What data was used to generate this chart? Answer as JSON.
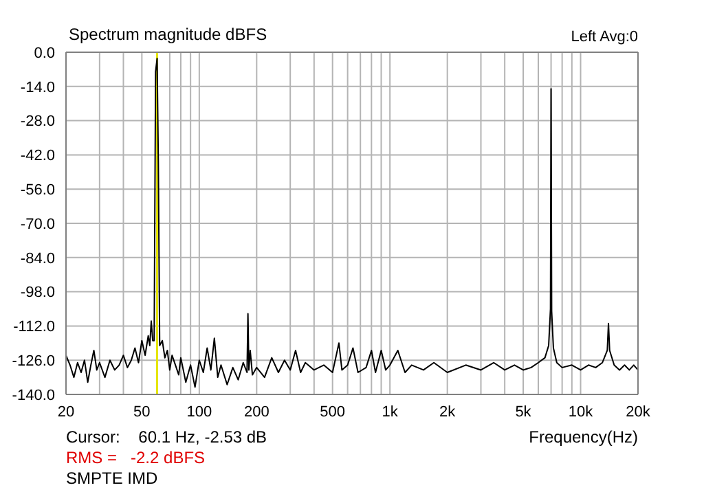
{
  "chart_data": {
    "type": "line",
    "title": "Spectrum magnitude dBFS",
    "xlabel": "Frequency(Hz)",
    "annotations": [
      "Left  Avg:0",
      "Cursor:    60.1 Hz, -2.53 dB",
      "RMS =   -2.2 dBFS",
      "SMPTE IMD"
    ],
    "log": "x",
    "grid": true,
    "xlim": [
      20,
      20000
    ],
    "ylim": [
      -140,
      0
    ],
    "xticks": [
      20,
      {
        "value": 30,
        "label": null
      },
      {
        "value": 40,
        "label": null
      },
      50,
      {
        "value": 60,
        "label": null
      },
      {
        "value": 70,
        "label": null
      },
      {
        "value": 80,
        "label": null
      },
      {
        "value": 90,
        "label": null
      },
      100,
      200,
      {
        "value": 300,
        "label": null
      },
      {
        "value": 400,
        "label": null
      },
      500,
      {
        "value": 600,
        "label": null
      },
      {
        "value": 700,
        "label": null
      },
      {
        "value": 800,
        "label": null
      },
      {
        "value": 900,
        "label": null
      },
      {
        "value": 1000,
        "label": "1k"
      },
      {
        "value": 2000,
        "label": "2k"
      },
      {
        "value": 3000,
        "label": null
      },
      {
        "value": 4000,
        "label": null
      },
      {
        "value": 5000,
        "label": "5k"
      },
      {
        "value": 6000,
        "label": null
      },
      {
        "value": 7000,
        "label": null
      },
      {
        "value": 8000,
        "label": null
      },
      {
        "value": 9000,
        "label": null
      },
      {
        "value": 10000,
        "label": "10k"
      },
      {
        "value": 20000,
        "label": "20k"
      }
    ],
    "yticks": [
      {
        "value": 0,
        "label": "0.0"
      },
      {
        "value": -14,
        "label": "-14.0"
      },
      {
        "value": -28,
        "label": "-28.0"
      },
      {
        "value": -42,
        "label": "-42.0"
      },
      {
        "value": -56,
        "label": "-56.0"
      },
      {
        "value": -70,
        "label": "-70.0"
      },
      {
        "value": -84,
        "label": "-84.0"
      },
      {
        "value": -98,
        "label": "-98.0"
      },
      {
        "value": -112,
        "label": "-112.0"
      },
      {
        "value": -126,
        "label": "-126.0"
      },
      {
        "value": -140,
        "label": "-140.0"
      }
    ],
    "ref_lines": [
      {
        "axis": "x",
        "value": 60.1,
        "color": "#e6e600"
      }
    ],
    "series": [
      {
        "color": "#000000",
        "x": [
          20,
          21,
          22,
          23,
          24,
          25,
          26,
          27,
          28,
          29,
          30,
          32,
          34,
          36,
          38,
          40,
          42,
          44,
          46,
          48,
          50,
          52,
          54,
          55,
          56,
          57,
          58,
          59,
          60.1,
          61,
          62,
          64,
          66,
          68,
          70,
          72,
          75,
          78,
          80,
          85,
          90,
          95,
          100,
          105,
          110,
          115,
          120,
          125,
          130,
          140,
          150,
          160,
          170,
          178,
          180,
          182,
          185,
          190,
          200,
          220,
          240,
          260,
          280,
          300,
          320,
          340,
          360,
          400,
          450,
          500,
          540,
          560,
          600,
          640,
          680,
          750,
          800,
          840,
          900,
          950,
          1000,
          1100,
          1200,
          1300,
          1500,
          1700,
          2000,
          2500,
          3000,
          3500,
          4000,
          4500,
          5000,
          5500,
          6000,
          6500,
          6800,
          6950,
          7000,
          7050,
          7200,
          7500,
          8000,
          9000,
          10000,
          11000,
          12000,
          13000,
          13800,
          14000,
          14200,
          15000,
          16000,
          17000,
          18000,
          19000,
          20000
        ],
        "values": [
          -124,
          -128,
          -133,
          -127,
          -131,
          -126,
          -135,
          -128,
          -122,
          -130,
          -127,
          -133,
          -126,
          -130,
          -128,
          -124,
          -129,
          -126,
          -121,
          -127,
          -118,
          -124,
          -116,
          -120,
          -110,
          -118,
          -118,
          -8,
          -2.53,
          -45,
          -120,
          -118,
          -125,
          -122,
          -130,
          -124,
          -128,
          -132,
          -125,
          -135,
          -128,
          -137,
          -126,
          -131,
          -121,
          -130,
          -117,
          -133,
          -128,
          -136,
          -129,
          -134,
          -127,
          -131,
          -107,
          -130,
          -122,
          -132,
          -129,
          -133,
          -125,
          -131,
          -126,
          -130,
          -122,
          -131,
          -127,
          -130,
          -128,
          -131,
          -119,
          -130,
          -128,
          -121,
          -131,
          -129,
          -122,
          -131,
          -122,
          -130,
          -128,
          -122,
          -131,
          -128,
          -130,
          -127,
          -131,
          -128,
          -130,
          -127,
          -130,
          -128,
          -130,
          -129,
          -127,
          -125,
          -120,
          -105,
          -15,
          -106,
          -121,
          -127,
          -129,
          -128,
          -130,
          -128,
          -129,
          -127,
          -122,
          -111,
          -122,
          -128,
          -130,
          -128,
          -130,
          -128,
          -130
        ]
      }
    ]
  }
}
